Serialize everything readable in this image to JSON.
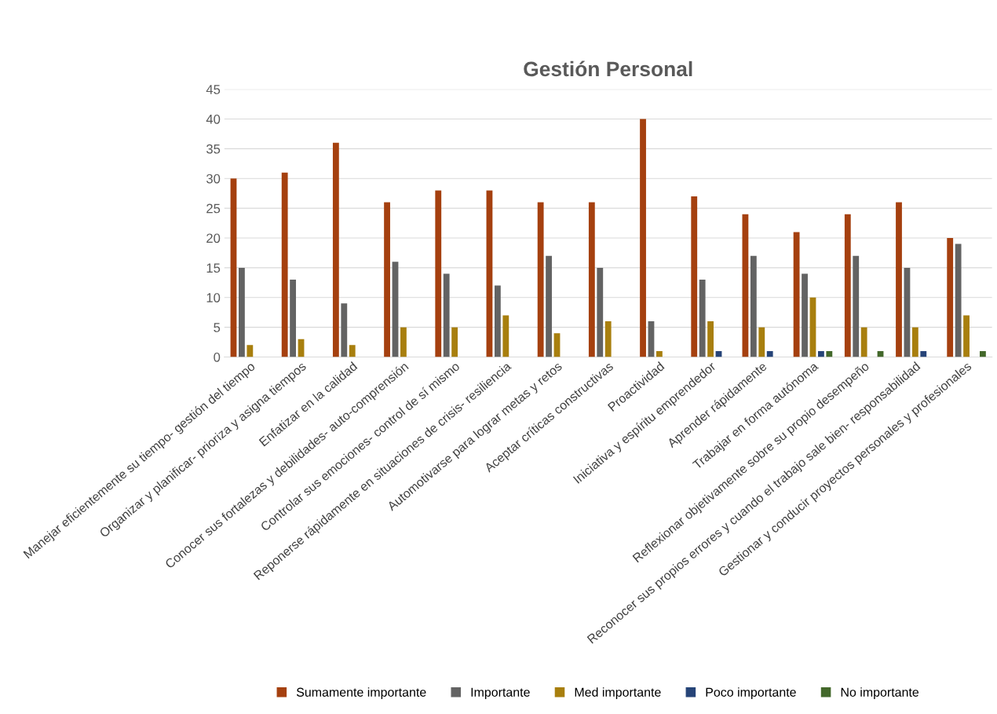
{
  "chart_data": {
    "type": "bar",
    "title": "Gestión Personal",
    "categories": [
      "Manejar eficientemente su tiempo- gestión del tiempo",
      "Organizar y planificar- prioriza y asigna tiempos",
      "Enfatizar en la calidad",
      "Conocer sus fortalezas y debilidades- auto-comprensión",
      "Controlar sus emociones- control de sí mismo",
      "Reponerse rápidamente en situaciones de crisis- resiliencia",
      "Automotivarse para lograr metas y retos",
      "Aceptar críticas constructivas",
      "Proactividad",
      "Iniciativa y espíritu emprendedor",
      "Aprender rápidamente",
      "Trabajar en forma autónoma",
      "Reflexionar objetivamente sobre su propio desempeño",
      "Reconocer sus propios errores y cuando el trabajo sale bien- responsabilidad",
      "Gestionar y conducir proyectos personales y profesionales"
    ],
    "series": [
      {
        "name": "Sumamente importante",
        "color": "#a5400f",
        "values": [
          30,
          31,
          36,
          26,
          28,
          28,
          26,
          26,
          40,
          27,
          24,
          21,
          24,
          26,
          20
        ]
      },
      {
        "name": "Importante",
        "color": "#636363",
        "values": [
          15,
          13,
          9,
          16,
          14,
          12,
          17,
          15,
          6,
          13,
          17,
          14,
          17,
          15,
          19
        ]
      },
      {
        "name": "Med importante",
        "color": "#a87f0e",
        "values": [
          2,
          3,
          2,
          5,
          5,
          7,
          4,
          6,
          1,
          6,
          5,
          10,
          5,
          5,
          7
        ]
      },
      {
        "name": "Poco importante",
        "color": "#264478",
        "values": [
          0,
          0,
          0,
          0,
          0,
          0,
          0,
          0,
          0,
          1,
          1,
          1,
          0,
          1,
          0
        ]
      },
      {
        "name": "No importante",
        "color": "#43682b",
        "values": [
          0,
          0,
          0,
          0,
          0,
          0,
          0,
          0,
          0,
          0,
          0,
          1,
          1,
          0,
          1
        ]
      }
    ],
    "ylim": [
      0,
      45
    ],
    "yticks": [
      0,
      5,
      10,
      15,
      20,
      25,
      30,
      35,
      40,
      45
    ],
    "grid": "y",
    "legend": "bottom"
  }
}
